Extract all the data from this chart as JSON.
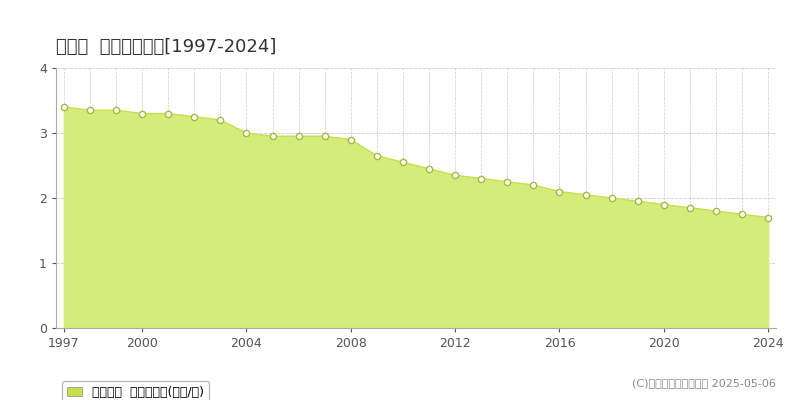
{
  "title": "大蔵村  基準地価推移[1997-2024]",
  "years": [
    1997,
    1998,
    1999,
    2000,
    2001,
    2002,
    2003,
    2004,
    2005,
    2006,
    2007,
    2008,
    2009,
    2010,
    2011,
    2012,
    2013,
    2014,
    2015,
    2016,
    2017,
    2018,
    2019,
    2020,
    2021,
    2022,
    2023,
    2024
  ],
  "values": [
    3.4,
    3.35,
    3.35,
    3.3,
    3.3,
    3.25,
    3.2,
    3.0,
    2.95,
    2.95,
    2.95,
    2.9,
    2.65,
    2.55,
    2.45,
    2.35,
    2.3,
    2.25,
    2.2,
    2.1,
    2.05,
    2.0,
    1.95,
    1.9,
    1.85,
    1.8,
    1.75,
    1.7
  ],
  "fill_color": "#d4ed7a",
  "line_color": "#c8e050",
  "marker_facecolor": "#ffffff",
  "marker_edgecolor": "#a8b840",
  "bg_color": "#ffffff",
  "plot_bg_color": "#ffffff",
  "grid_color_h": "#cccccc",
  "grid_color_v": "#cccccc",
  "ylim": [
    0,
    4
  ],
  "yticks": [
    0,
    1,
    2,
    3,
    4
  ],
  "xticks": [
    1997,
    2000,
    2004,
    2008,
    2012,
    2016,
    2020,
    2024
  ],
  "legend_label": "基準地価  平均坪単価(万円/坪)",
  "legend_color": "#c8e050",
  "copyright_text": "(C)土地価格ドットコム 2025-05-06",
  "title_fontsize": 13,
  "tick_fontsize": 9,
  "legend_fontsize": 9,
  "copyright_fontsize": 8,
  "spine_color": "#aaaaaa"
}
